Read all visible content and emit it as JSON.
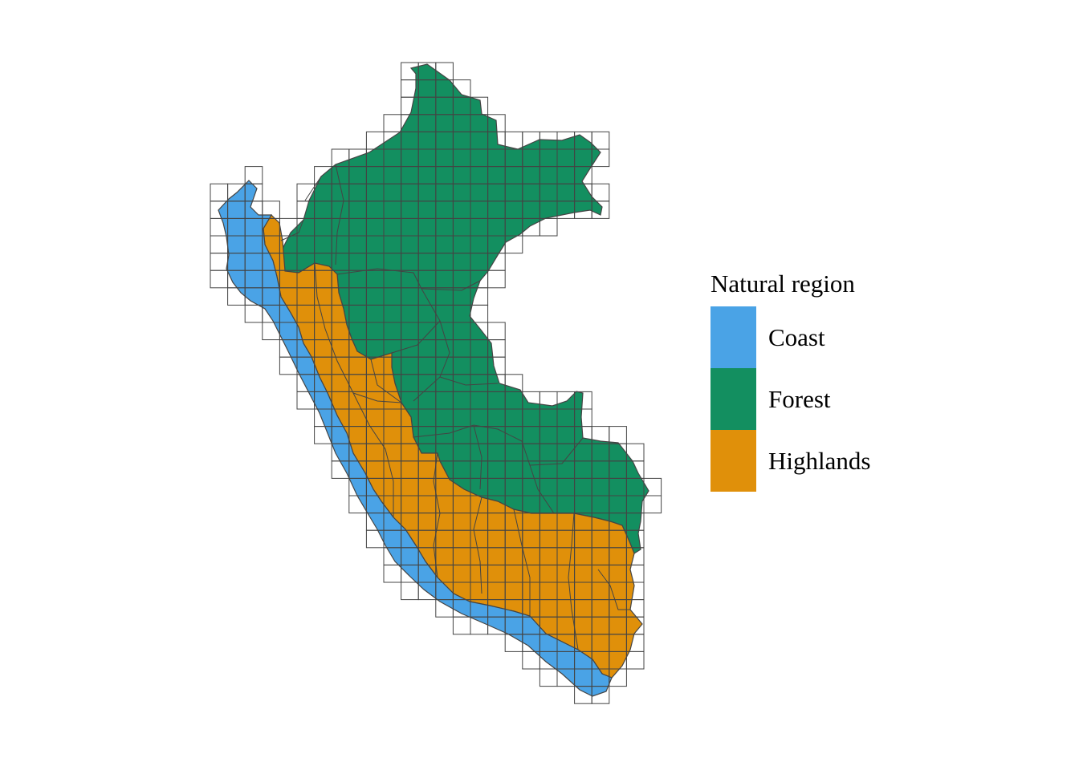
{
  "legend": {
    "title": "Natural region",
    "items": [
      {
        "label": "Coast",
        "color": "#4aa3e6"
      },
      {
        "label": "Forest",
        "color": "#138f60"
      },
      {
        "label": "Highlands",
        "color": "#e0900a"
      }
    ]
  },
  "grid_color": "#444444",
  "border_color": "#444444"
}
